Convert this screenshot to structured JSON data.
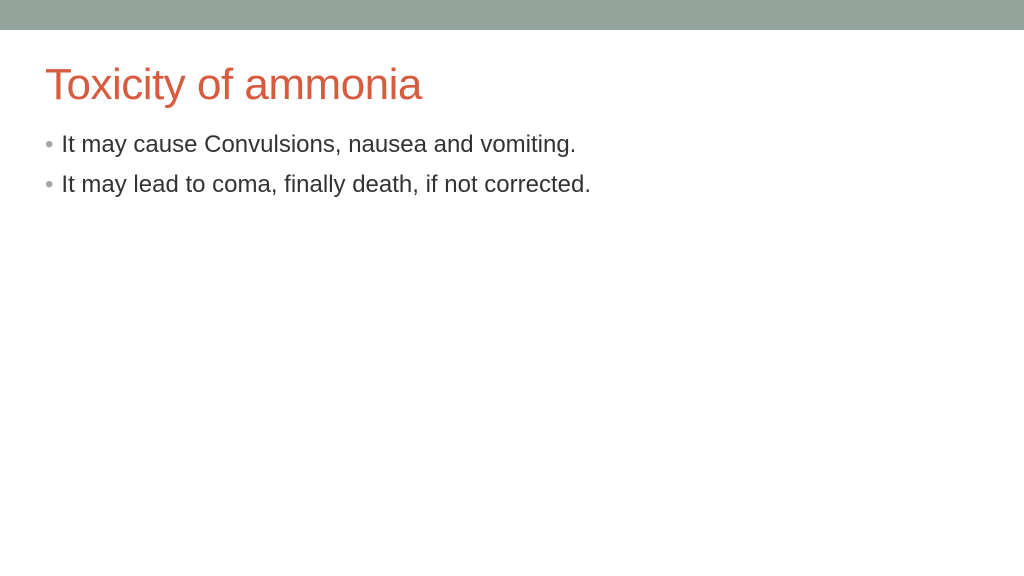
{
  "slide": {
    "top_bar_color": "#94a39c",
    "background_color": "#ffffff",
    "title": {
      "text": "Toxicity of ammonia",
      "color": "#d75b3f",
      "fontsize": 44
    },
    "bullets": [
      {
        "text": "It may cause Convulsions, nausea and vomiting."
      },
      {
        "text": "It may lead to coma, finally death, if not corrected."
      }
    ],
    "bullet_style": {
      "marker": "•",
      "marker_color": "#a6a6a6",
      "text_color": "#333333",
      "fontsize": 24
    }
  }
}
